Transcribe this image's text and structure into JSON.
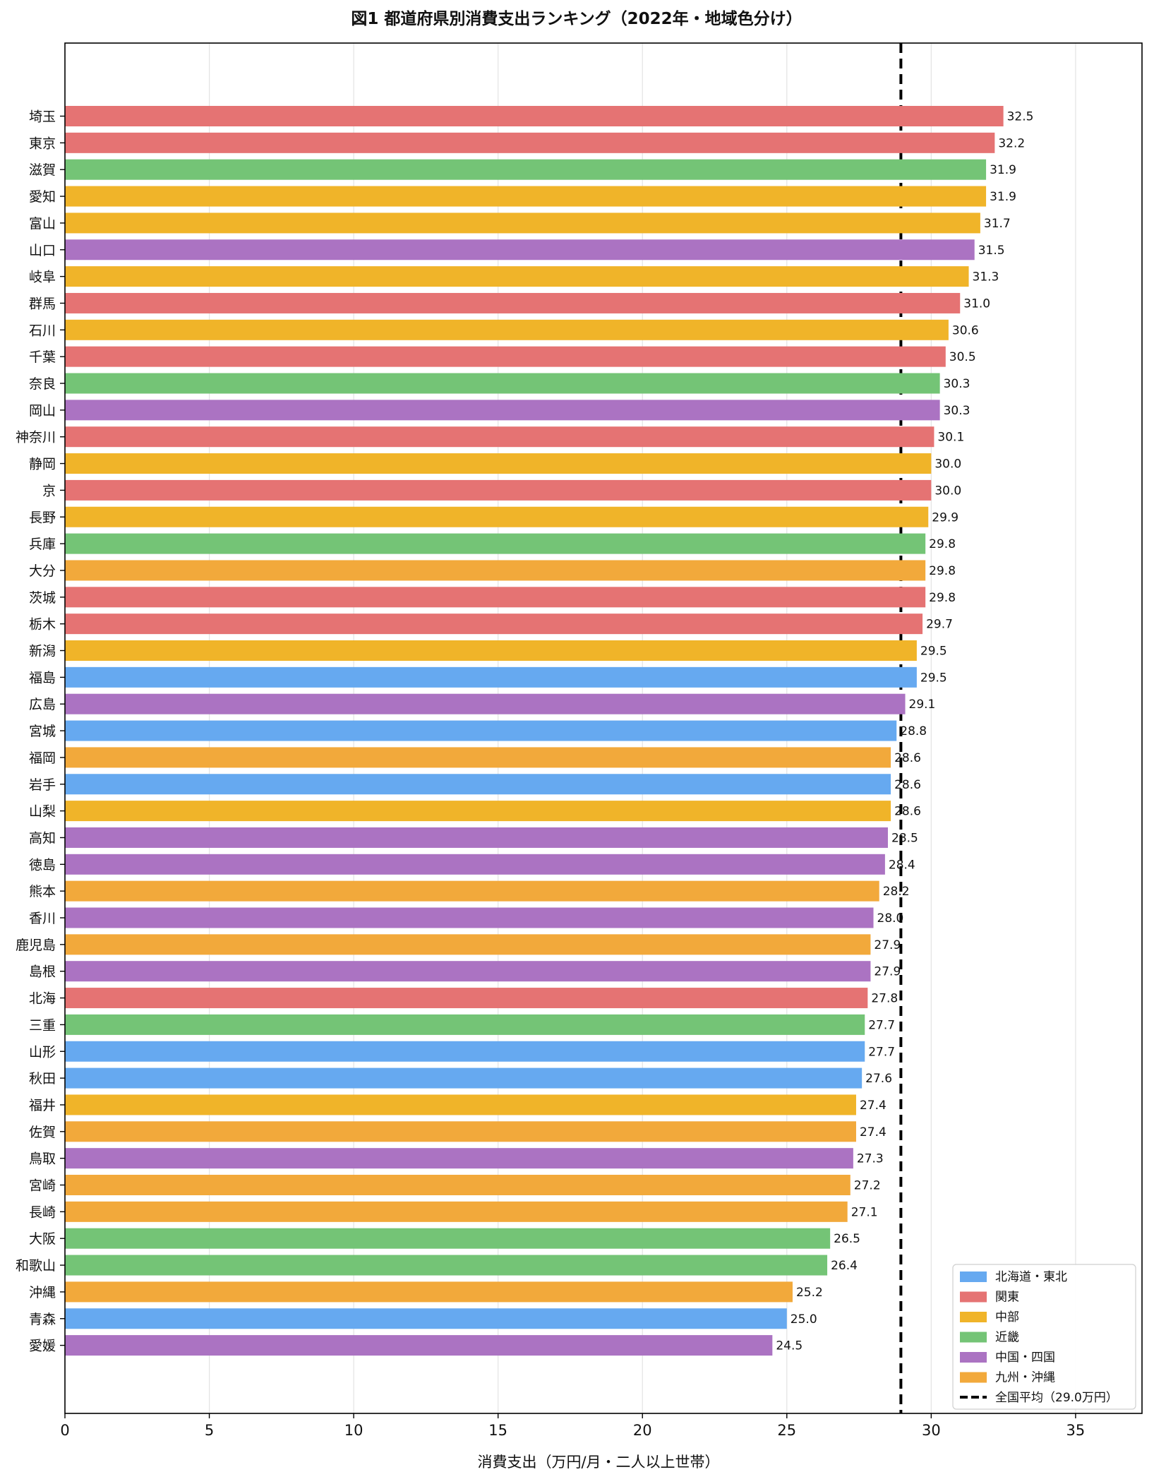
{
  "chart_data": {
    "type": "bar",
    "orientation": "horizontal",
    "title": "図1 都道府県別消費支出ランキング（2022年・地域色分け）",
    "xlabel": "消費支出（万円/月・二人以上世帯）",
    "ylabel": "",
    "xlim": [
      0,
      37.3
    ],
    "xticks": [
      "0",
      "5",
      "10",
      "15",
      "20",
      "25",
      "30",
      "35"
    ],
    "xtick_values": [
      0,
      5,
      10,
      15,
      20,
      25,
      30,
      35
    ],
    "grid": "x-axis",
    "legend_position": "bottom-right",
    "regions": [
      {
        "name": "北海道・東北",
        "color": "#66a9f0"
      },
      {
        "name": "関東",
        "color": "#e57373"
      },
      {
        "name": "中部",
        "color": "#f0b429"
      },
      {
        "name": "近畿",
        "color": "#74c476"
      },
      {
        "name": "中国・四国",
        "color": "#ab73c2"
      },
      {
        "name": "九州・沖縄",
        "color": "#f2a93b"
      }
    ],
    "average": {
      "label": "全国平均（29.0万円）",
      "value": 28.95
    },
    "bars": [
      {
        "name": "埼玉",
        "value": 32.5,
        "label": "32.5",
        "region": 1
      },
      {
        "name": "東京",
        "value": 32.2,
        "label": "32.2",
        "region": 1
      },
      {
        "name": "滋賀",
        "value": 31.9,
        "label": "31.9",
        "region": 3
      },
      {
        "name": "愛知",
        "value": 31.9,
        "label": "31.9",
        "region": 2
      },
      {
        "name": "富山",
        "value": 31.7,
        "label": "31.7",
        "region": 2
      },
      {
        "name": "山口",
        "value": 31.5,
        "label": "31.5",
        "region": 4
      },
      {
        "name": "岐阜",
        "value": 31.3,
        "label": "31.3",
        "region": 2
      },
      {
        "name": "群馬",
        "value": 31.0,
        "label": "31.0",
        "region": 1
      },
      {
        "name": "石川",
        "value": 30.6,
        "label": "30.6",
        "region": 2
      },
      {
        "name": "千葉",
        "value": 30.5,
        "label": "30.5",
        "region": 1
      },
      {
        "name": "奈良",
        "value": 30.3,
        "label": "30.3",
        "region": 3
      },
      {
        "name": "岡山",
        "value": 30.3,
        "label": "30.3",
        "region": 4
      },
      {
        "name": "神奈川",
        "value": 30.1,
        "label": "30.1",
        "region": 1
      },
      {
        "name": "静岡",
        "value": 30.0,
        "label": "30.0",
        "region": 2
      },
      {
        "name": "京",
        "value": 30.0,
        "label": "30.0",
        "region": 1
      },
      {
        "name": "長野",
        "value": 29.9,
        "label": "29.9",
        "region": 2
      },
      {
        "name": "兵庫",
        "value": 29.8,
        "label": "29.8",
        "region": 3
      },
      {
        "name": "大分",
        "value": 29.8,
        "label": "29.8",
        "region": 5
      },
      {
        "name": "茨城",
        "value": 29.8,
        "label": "29.8",
        "region": 1
      },
      {
        "name": "栃木",
        "value": 29.7,
        "label": "29.7",
        "region": 1
      },
      {
        "name": "新潟",
        "value": 29.5,
        "label": "29.5",
        "region": 2
      },
      {
        "name": "福島",
        "value": 29.5,
        "label": "29.5",
        "region": 0
      },
      {
        "name": "広島",
        "value": 29.1,
        "label": "29.1",
        "region": 4
      },
      {
        "name": "宮城",
        "value": 28.8,
        "label": "28.8",
        "region": 0
      },
      {
        "name": "福岡",
        "value": 28.6,
        "label": "28.6",
        "region": 5
      },
      {
        "name": "岩手",
        "value": 28.6,
        "label": "28.6",
        "region": 0
      },
      {
        "name": "山梨",
        "value": 28.6,
        "label": "28.6",
        "region": 2
      },
      {
        "name": "高知",
        "value": 28.5,
        "label": "28.5",
        "region": 4
      },
      {
        "name": "徳島",
        "value": 28.4,
        "label": "28.4",
        "region": 4
      },
      {
        "name": "熊本",
        "value": 28.2,
        "label": "28.2",
        "region": 5
      },
      {
        "name": "香川",
        "value": 28.0,
        "label": "28.0",
        "region": 4
      },
      {
        "name": "鹿児島",
        "value": 27.9,
        "label": "27.9",
        "region": 5
      },
      {
        "name": "島根",
        "value": 27.9,
        "label": "27.9",
        "region": 4
      },
      {
        "name": "北海",
        "value": 27.8,
        "label": "27.8",
        "region": 1
      },
      {
        "name": "三重",
        "value": 27.7,
        "label": "27.7",
        "region": 3
      },
      {
        "name": "山形",
        "value": 27.7,
        "label": "27.7",
        "region": 0
      },
      {
        "name": "秋田",
        "value": 27.6,
        "label": "27.6",
        "region": 0
      },
      {
        "name": "福井",
        "value": 27.4,
        "label": "27.4",
        "region": 2
      },
      {
        "name": "佐賀",
        "value": 27.4,
        "label": "27.4",
        "region": 5
      },
      {
        "name": "鳥取",
        "value": 27.3,
        "label": "27.3",
        "region": 4
      },
      {
        "name": "宮崎",
        "value": 27.2,
        "label": "27.2",
        "region": 5
      },
      {
        "name": "長崎",
        "value": 27.1,
        "label": "27.1",
        "region": 5
      },
      {
        "name": "大阪",
        "value": 26.5,
        "label": "26.5",
        "region": 3
      },
      {
        "name": "和歌山",
        "value": 26.4,
        "label": "26.4",
        "region": 3
      },
      {
        "name": "沖縄",
        "value": 25.2,
        "label": "25.2",
        "region": 5
      },
      {
        "name": "青森",
        "value": 25.0,
        "label": "25.0",
        "region": 0
      },
      {
        "name": "愛媛",
        "value": 24.5,
        "label": "24.5",
        "region": 4
      }
    ]
  }
}
